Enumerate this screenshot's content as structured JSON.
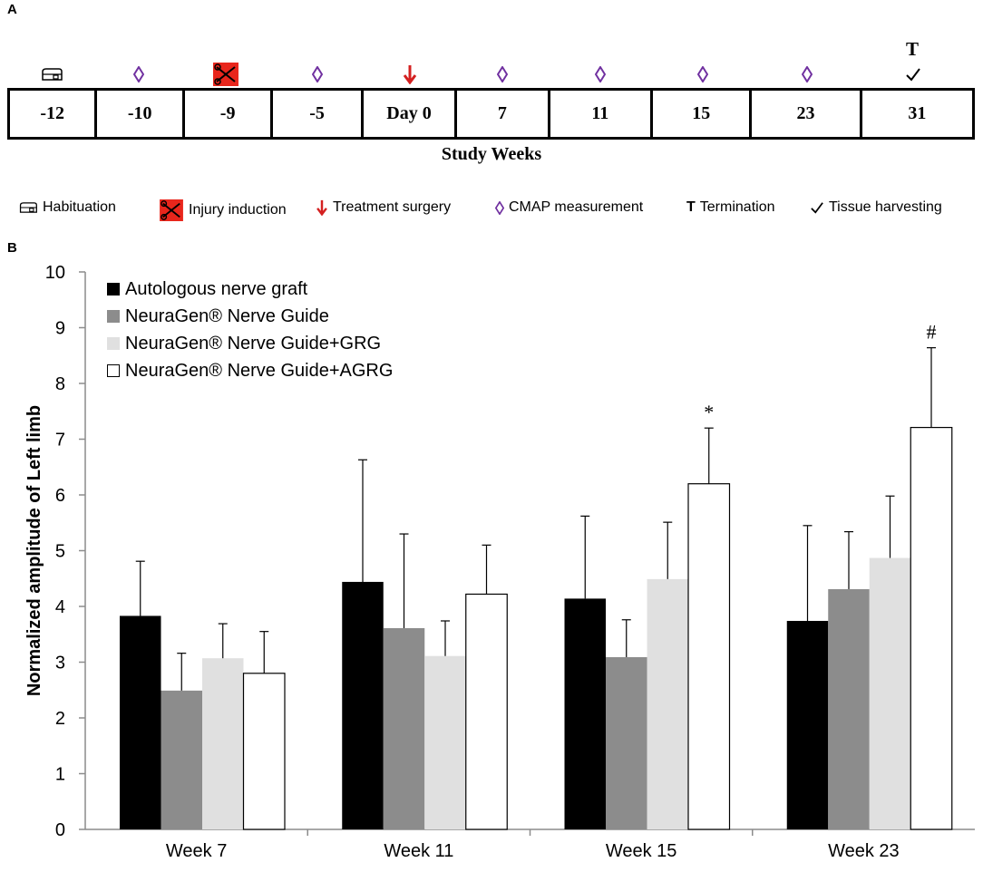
{
  "panel_labels": {
    "a": "A",
    "b": "B"
  },
  "timeline": {
    "weeks": [
      "-12",
      "-10",
      "-9",
      "-5",
      "Day 0",
      "7",
      "11",
      "15",
      "23",
      "31"
    ],
    "axis_label": "Study Weeks",
    "termination_letter": "T",
    "markers": [
      "habituation-icon",
      "cmap-icon",
      "injury-icon",
      "cmap-icon",
      "treatment-icon",
      "cmap-icon",
      "cmap-icon",
      "cmap-icon",
      "cmap-icon",
      "tissue-harvest-icon"
    ]
  },
  "key": {
    "habituation": "Habituation",
    "injury": "Injury induction",
    "treatment": "Treatment surgery",
    "cmap": "CMAP measurement",
    "termination_letter": "T",
    "termination": "Termination",
    "tissue": "Tissue harvesting"
  },
  "colors": {
    "injury_bg": "#e8261c",
    "treatment_arrow": "#d42020",
    "cmap_diamond": "#7030a0"
  },
  "chart_data": {
    "type": "bar",
    "title": "",
    "xlabel": "",
    "ylabel": "Normalized amplitude of Left limb",
    "ylim": [
      0,
      10
    ],
    "yticks": [
      "0",
      "1",
      "2",
      "3",
      "4",
      "5",
      "6",
      "7",
      "8",
      "9",
      "10"
    ],
    "categories": [
      "Week 7",
      "Week 11",
      "Week 15",
      "Week 23"
    ],
    "series": [
      {
        "name": "Autologous nerve graft",
        "color": "#000000",
        "values": [
          3.83,
          4.44,
          4.14,
          3.74
        ],
        "errors": [
          0.98,
          2.19,
          1.48,
          1.71
        ]
      },
      {
        "name": "NeuraGen® Nerve Guide",
        "color": "#8c8c8c",
        "values": [
          2.49,
          3.61,
          3.09,
          4.31
        ],
        "errors": [
          0.67,
          1.69,
          0.67,
          1.03
        ]
      },
      {
        "name": "NeuraGen® Nerve Guide+GRG",
        "color": "#e0e0e0",
        "values": [
          3.07,
          3.11,
          4.49,
          4.87
        ],
        "errors": [
          0.62,
          0.63,
          1.02,
          1.11
        ]
      },
      {
        "name": "NeuraGen® Nerve Guide+AGRG",
        "color": "#ffffff",
        "values": [
          2.8,
          4.22,
          6.2,
          7.21
        ],
        "errors": [
          0.75,
          0.88,
          1.0,
          1.43
        ]
      }
    ],
    "annotations": [
      {
        "category": "Week 15",
        "series": "NeuraGen® Nerve Guide+AGRG",
        "text": "*"
      },
      {
        "category": "Week 23",
        "series": "NeuraGen® Nerve Guide+AGRG",
        "text": "#"
      }
    ],
    "legend_position": "top-left"
  }
}
